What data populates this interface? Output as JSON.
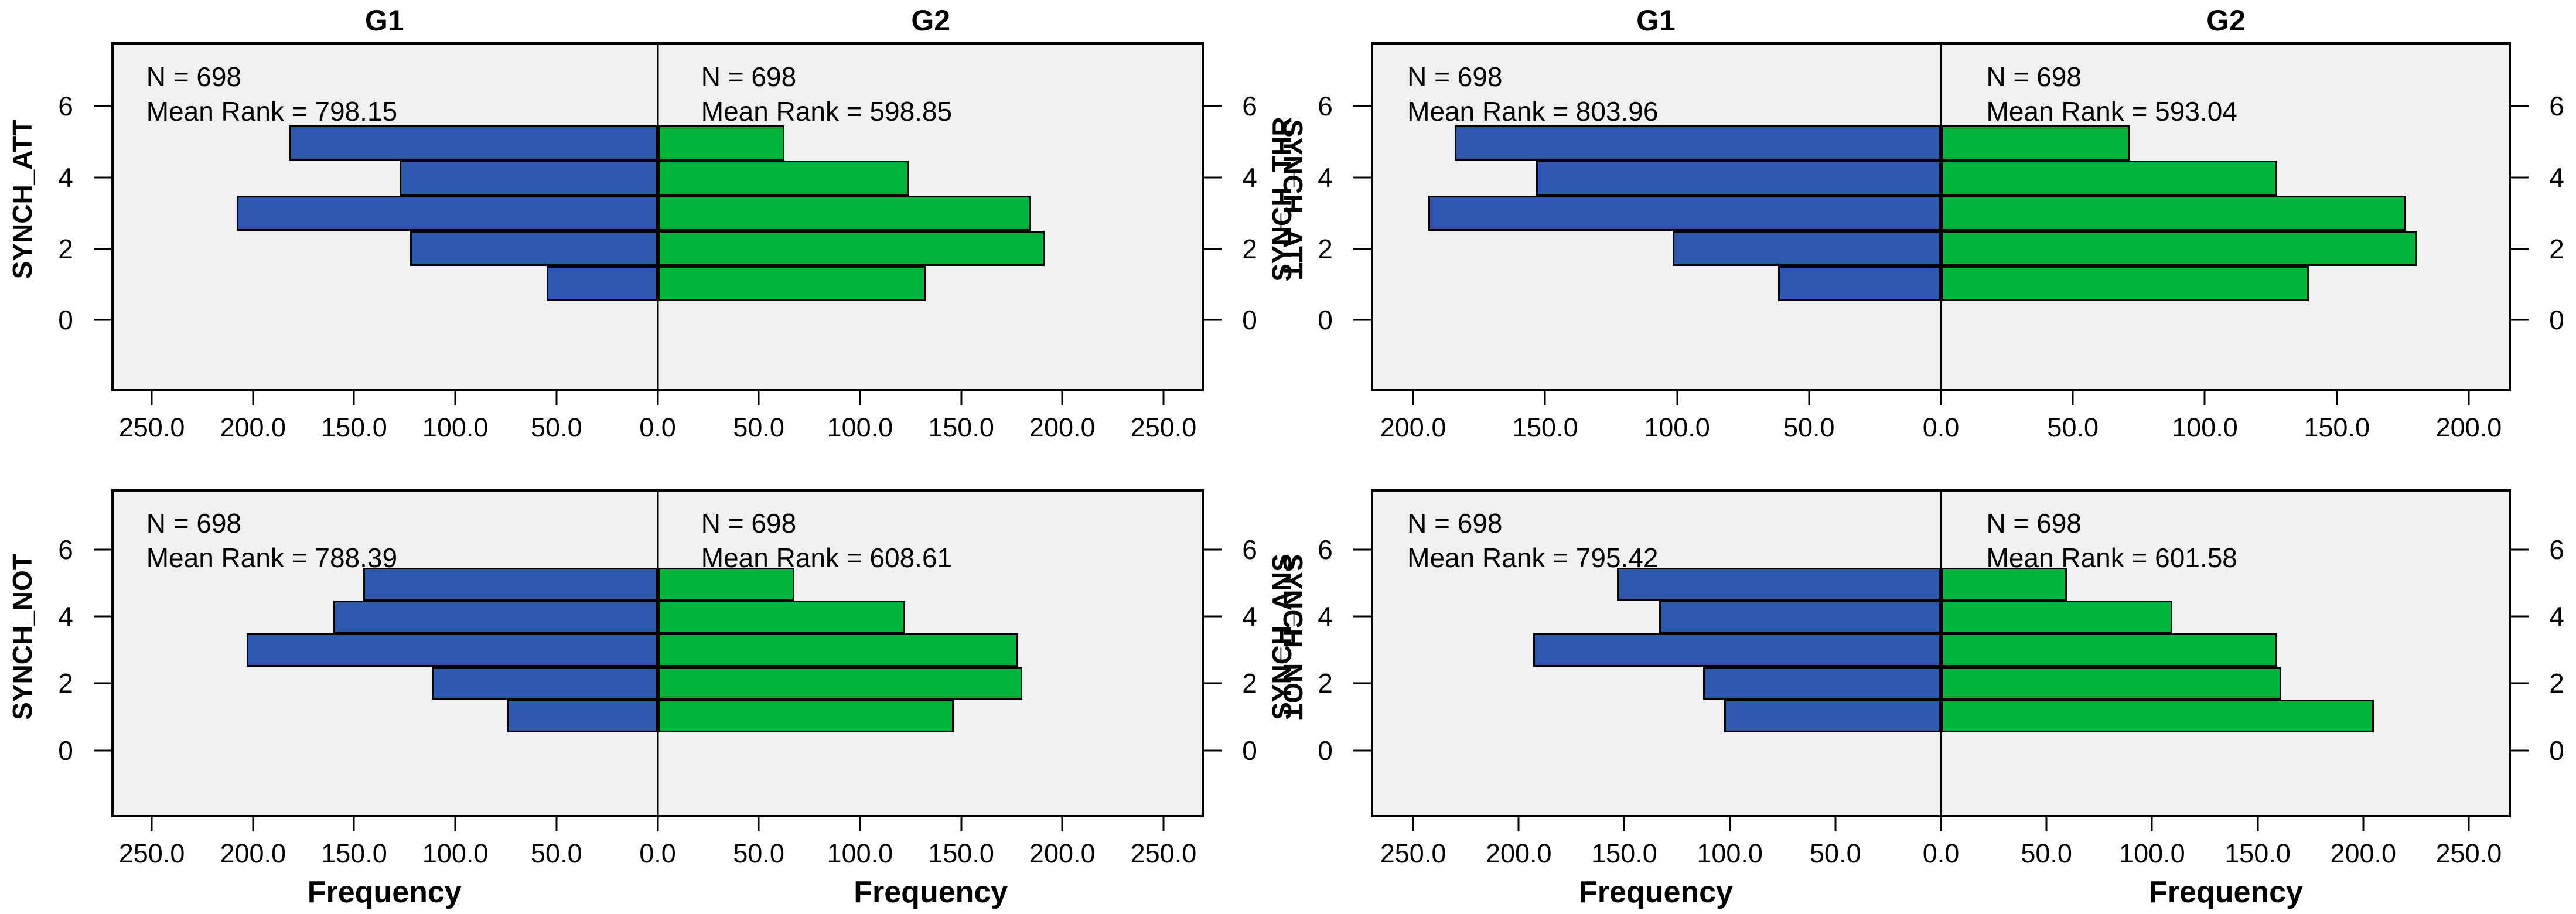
{
  "figure": {
    "background": "#ffffff",
    "plot_background": "#f0f0f0",
    "bar_border_color": "#000000",
    "group_colors": {
      "G1": "#2e58ab",
      "G2": "#00b43e"
    },
    "frequency_label": "Frequency"
  },
  "chart_data": [
    {
      "type": "bar",
      "subtype": "population-pyramid",
      "variable": "SYNCH_ATT",
      "title_left": "G1",
      "title_right": "G2",
      "show_group_titles": true,
      "xlabel": "",
      "categories": [
        1,
        2,
        3,
        4,
        5
      ],
      "y_tick_labels": [
        "0",
        "2",
        "4",
        "6"
      ],
      "x_tick_step": 50,
      "x_tick_max": 250,
      "x_tick_labels_left": [
        "250.0",
        "200.0",
        "150.0",
        "100.0",
        "50.0"
      ],
      "x_tick_label_center": "0.0",
      "x_tick_labels_right": [
        "50.0",
        "100.0",
        "150.0",
        "200.0",
        "250.0"
      ],
      "series": [
        {
          "name": "G1",
          "side": "left",
          "color": "#2e58ab",
          "n_label": "N = 698",
          "mean_rank_label": "Mean Rank = 798.15",
          "values": [
            55,
            123,
            209,
            128,
            183
          ]
        },
        {
          "name": "G2",
          "side": "right",
          "color": "#00b43e",
          "n_label": "N = 698",
          "mean_rank_label": "Mean Rank = 598.85",
          "values": [
            133,
            192,
            185,
            125,
            63
          ]
        }
      ]
    },
    {
      "type": "bar",
      "subtype": "population-pyramid",
      "variable": "SYNCH_THR",
      "title_left": "G1",
      "title_right": "G2",
      "show_group_titles": true,
      "xlabel": "",
      "categories": [
        1,
        2,
        3,
        4,
        5
      ],
      "y_tick_labels": [
        "0",
        "2",
        "4",
        "6"
      ],
      "x_tick_step": 50,
      "x_tick_max": 200,
      "x_tick_labels_left": [
        "200.0",
        "150.0",
        "100.0",
        "50.0"
      ],
      "x_tick_label_center": "0.0",
      "x_tick_labels_right": [
        "50.0",
        "100.0",
        "150.0",
        "200.0"
      ],
      "series": [
        {
          "name": "G1",
          "side": "left",
          "color": "#2e58ab",
          "n_label": "N = 698",
          "mean_rank_label": "Mean Rank = 803.96",
          "values": [
            62,
            102,
            195,
            154,
            185
          ]
        },
        {
          "name": "G2",
          "side": "right",
          "color": "#00b43e",
          "n_label": "N = 698",
          "mean_rank_label": "Mean Rank = 593.04",
          "values": [
            140,
            181,
            177,
            128,
            72
          ]
        }
      ]
    },
    {
      "type": "bar",
      "subtype": "population-pyramid",
      "variable": "SYNCH_NOT",
      "title_left": "G1",
      "title_right": "G2",
      "show_group_titles": false,
      "xlabel": "Frequency",
      "categories": [
        1,
        2,
        3,
        4,
        5
      ],
      "y_tick_labels": [
        "0",
        "2",
        "4",
        "6"
      ],
      "x_tick_step": 50,
      "x_tick_max": 250,
      "x_tick_labels_left": [
        "250.0",
        "200.0",
        "150.0",
        "100.0",
        "50.0"
      ],
      "x_tick_label_center": "0.0",
      "x_tick_labels_right": [
        "50.0",
        "100.0",
        "150.0",
        "200.0",
        "250.0"
      ],
      "series": [
        {
          "name": "G1",
          "side": "left",
          "color": "#2e58ab",
          "n_label": "N = 698",
          "mean_rank_label": "Mean Rank = 788.39",
          "values": [
            75,
            112,
            204,
            161,
            146
          ]
        },
        {
          "name": "G2",
          "side": "right",
          "color": "#00b43e",
          "n_label": "N = 698",
          "mean_rank_label": "Mean Rank = 608.61",
          "values": [
            147,
            181,
            179,
            123,
            68
          ]
        }
      ]
    },
    {
      "type": "bar",
      "subtype": "population-pyramid",
      "variable": "SYNCH_ANS",
      "title_left": "G1",
      "title_right": "G2",
      "show_group_titles": false,
      "xlabel": "Frequency",
      "categories": [
        1,
        2,
        3,
        4,
        5
      ],
      "y_tick_labels": [
        "0",
        "2",
        "4",
        "6"
      ],
      "x_tick_step": 50,
      "x_tick_max": 250,
      "x_tick_labels_left": [
        "250.0",
        "200.0",
        "150.0",
        "100.0",
        "50.0"
      ],
      "x_tick_label_center": "0.0",
      "x_tick_labels_right": [
        "50.0",
        "100.0",
        "150.0",
        "200.0",
        "250.0"
      ],
      "series": [
        {
          "name": "G1",
          "side": "left",
          "color": "#2e58ab",
          "n_label": "N = 698",
          "mean_rank_label": "Mean Rank = 795.42",
          "values": [
            103,
            113,
            194,
            134,
            154
          ]
        },
        {
          "name": "G2",
          "side": "right",
          "color": "#00b43e",
          "n_label": "N = 698",
          "mean_rank_label": "Mean Rank = 601.58",
          "values": [
            206,
            162,
            160,
            110,
            60
          ]
        }
      ]
    }
  ]
}
